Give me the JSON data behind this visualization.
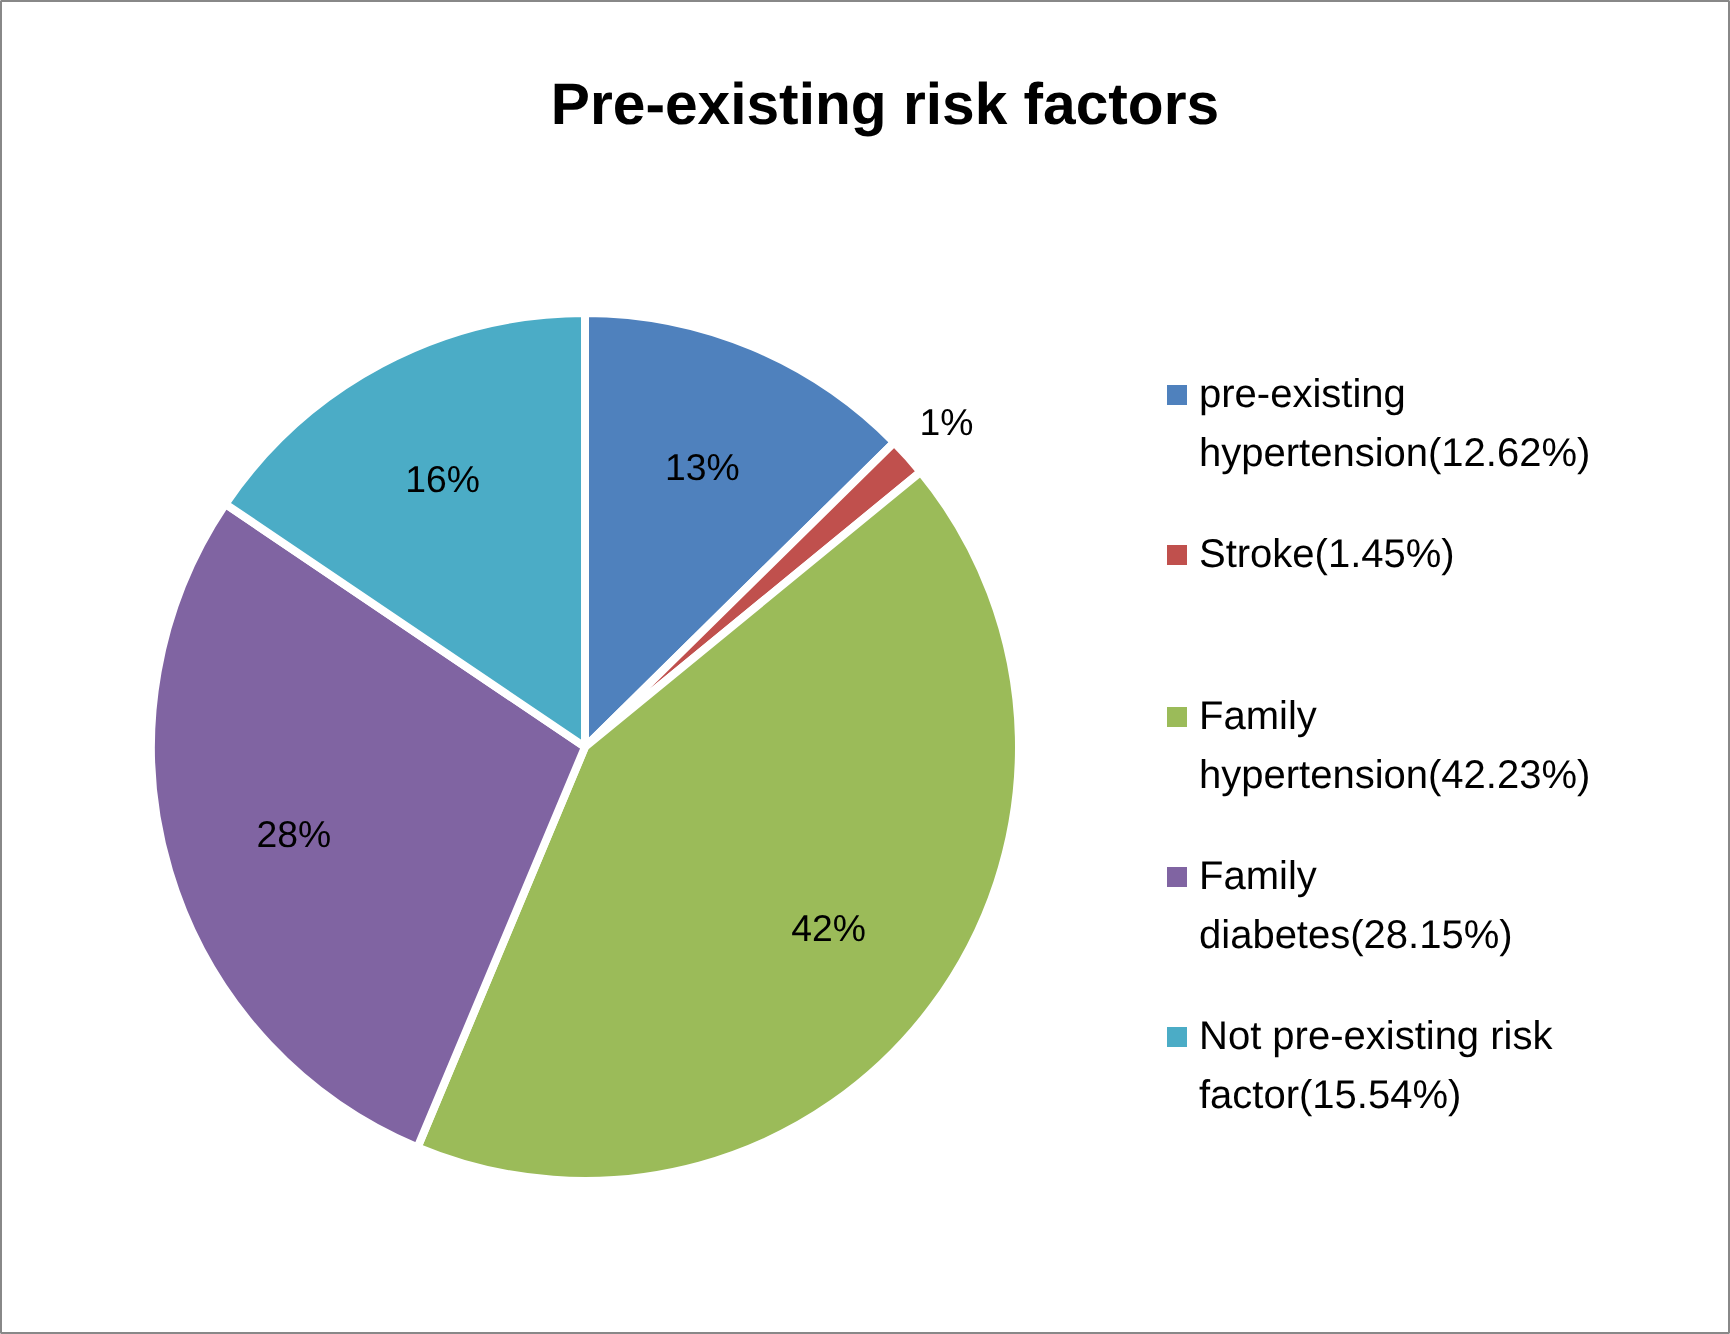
{
  "chart_data": {
    "type": "pie",
    "title": "Pre-existing risk factors",
    "categories": [
      "pre-existing hypertension(12.62%)",
      "Stroke(1.45%)",
      "Family hypertension(42.23%)",
      "Family diabetes(28.15%)",
      "Not pre-existing risk factor(15.54%)"
    ],
    "values": [
      12.62,
      1.45,
      42.23,
      28.15,
      15.54
    ],
    "colors": [
      "#4f81bd",
      "#c0504d",
      "#9bbb59",
      "#8064a2",
      "#4bacc6"
    ],
    "value_labels": [
      "13%",
      "1%",
      "42%",
      "28%",
      "16%"
    ],
    "legend": "right"
  }
}
